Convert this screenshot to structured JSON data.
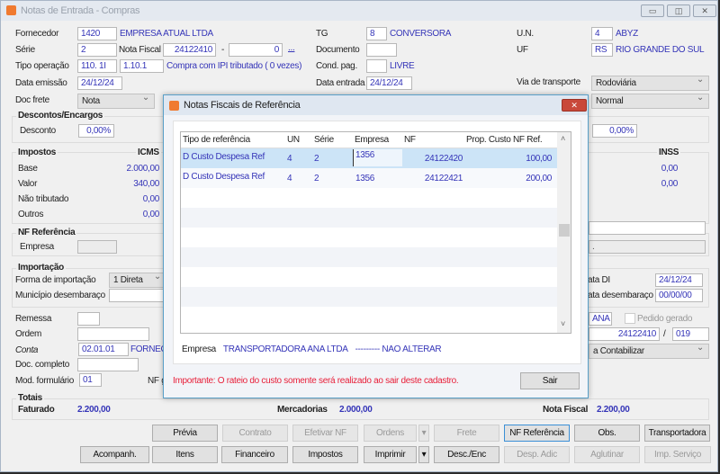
{
  "window": {
    "title": "Notas de Entrada - Compras",
    "minimize": "▭",
    "maximize": "◫",
    "close": "✕"
  },
  "header": {
    "fornecedor_label": "Fornecedor",
    "fornecedor_code": "1420",
    "fornecedor_name": "EMPRESA ATUAL LTDA",
    "serie_label": "Série",
    "serie": "2",
    "nota_fiscal_label": "Nota Fiscal",
    "nota_fiscal": "24122410",
    "dash": "-",
    "nf_suffix": "0",
    "ellipsis": "...",
    "tipo_operacao_label": "Tipo operação",
    "tipo_operacao": "110. 1I",
    "tipo_operacao2": "1.10.1",
    "tipo_operacao_desc": "Compra com IPI tributado ( 0 vezes)",
    "data_emissao_label": "Data emissão",
    "data_emissao": "24/12/24",
    "doc_frete_label": "Doc frete",
    "doc_frete": "Nota",
    "tg_label": "TG",
    "tg": "8",
    "tg_name": "CONVERSORA",
    "documento_label": "Documento",
    "documento": "",
    "cond_pag_label": "Cond. pag.",
    "cond_pag": "",
    "cond_pag_name": "LIVRE",
    "data_entrada_label": "Data entrada",
    "data_entrada": "24/12/24",
    "un_label": "U.N.",
    "un": "4",
    "un_name": "ABYZ",
    "uf_label": "UF",
    "uf": "RS",
    "uf_name": "RIO GRANDE DO SUL",
    "via_label": "Via de transporte",
    "via": "Rodoviária",
    "tipo2": "Normal"
  },
  "descontos": {
    "title": "Descontos/Encargos",
    "desconto_label": "Desconto",
    "desconto": "0,00%",
    "right_value": "0,00%"
  },
  "impostos": {
    "title": "Impostos",
    "icms_label": "ICMS",
    "rows": [
      {
        "label": "Base",
        "value": "2.000,00"
      },
      {
        "label": "Valor",
        "value": "340,00"
      },
      {
        "label": "Não tributado",
        "value": "0,00"
      },
      {
        "label": "Outros",
        "value": "0,00"
      }
    ],
    "inss_label": "INSS",
    "inss_values": [
      "0,00",
      "0,00"
    ]
  },
  "nf_ref": {
    "title": "NF Referência",
    "empresa_label": "Empresa",
    "right_dot": "."
  },
  "importacao": {
    "title": "Importação",
    "forma_label": "Forma de importação",
    "forma": "1 Direta",
    "municipio_label": "Município desembaraço",
    "data_di_label": "ata DI",
    "data_di": "24/12/24",
    "data_desemb_label": "ata desembaraço",
    "data_desemb": "00/00/00"
  },
  "misc": {
    "remessa_label": "Remessa",
    "ordem_label": "Ordem",
    "conta_label": "Conta",
    "conta": "02.01.01",
    "conta_name": "FORNECE",
    "doc_completo_label": "Doc. completo",
    "mod_label": "Mod. formulário",
    "mod": "01",
    "nfg_label": "NF g",
    "ana": "ANA",
    "pedido_gerado": "Pedido gerado",
    "nf_num": "24122410",
    "slash": "/",
    "nf_serie": "019",
    "contab": "a Contabilizar"
  },
  "totais": {
    "title": "Totais",
    "faturado_label": "Faturado",
    "faturado": "2.200,00",
    "mercadorias_label": "Mercadorias",
    "mercadorias": "2.000,00",
    "nota_fiscal_label": "Nota Fiscal",
    "nota_fiscal": "2.200,00"
  },
  "buttons": {
    "previa": "Prévia",
    "contrato": "Contrato",
    "efetivar": "Efetivar NF",
    "ordens": "Ordens",
    "frete": "Frete",
    "nf_referencia": "NF Referência",
    "obs": "Obs.",
    "transportadora": "Transportadora",
    "acompanh": "Acompanh.",
    "itens": "Itens",
    "financeiro": "Financeiro",
    "impostos": "Impostos",
    "imprimir": "Imprimir",
    "desc_enc": "Desc./Enc",
    "desp_adic": "Desp. Adic",
    "aglutinar": "Aglutinar",
    "imp_servico": "Imp. Serviço"
  },
  "dialog": {
    "title": "Notas Fiscais de Referência",
    "close": "✕",
    "columns": [
      "Tipo de referência",
      "UN",
      "Série",
      "Empresa",
      "NF",
      "Prop. Custo NF Ref."
    ],
    "rows": [
      [
        "D Custo Despesa Ref",
        "4",
        "2",
        "1356",
        "24122420",
        "100,00"
      ],
      [
        "D Custo Despesa Ref",
        "4",
        "2",
        "1356",
        "24122421",
        "200,00"
      ]
    ],
    "empresa_label": "Empresa",
    "empresa_name": "TRANSPORTADORA ANA LTDA",
    "empresa_note": "--------- NAO ALTERAR",
    "warning": "Importante: O rateio do custo somente será realizado ao sair deste cadastro.",
    "sair": "Sair"
  },
  "colors": {
    "value_blue": "#3535b8",
    "selection": "#cce4f7",
    "warning_red": "#e8203a"
  }
}
